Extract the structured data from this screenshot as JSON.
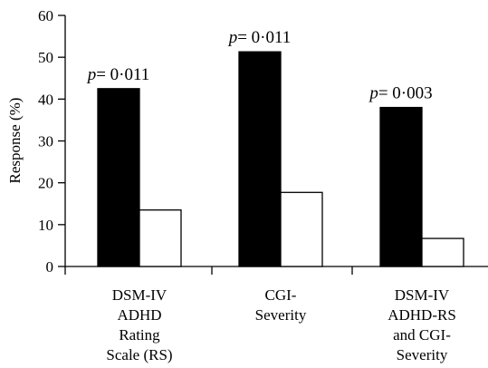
{
  "chart_data": {
    "type": "bar",
    "ylabel": "Response (%)",
    "xlabel": "",
    "ylim": [
      0,
      60
    ],
    "yticks": [
      0,
      10,
      20,
      30,
      40,
      50,
      60
    ],
    "grid": false,
    "legend": "none",
    "categories": [
      [
        "DSM-IV",
        "ADHD",
        "Rating",
        "Scale (RS)"
      ],
      [
        "CGI-",
        "Severity"
      ],
      [
        "DSM-IV",
        "ADHD-RS",
        "and CGI-",
        "Severity"
      ]
    ],
    "series": [
      {
        "values": [
          42.5,
          51.3,
          38.0
        ],
        "color": "#000000"
      },
      {
        "values": [
          13.5,
          17.7,
          6.7
        ],
        "color": "#ffffff"
      }
    ],
    "annotations": [
      {
        "italic": "p",
        "text": "= 0·011"
      },
      {
        "italic": "p",
        "text": "= 0·011"
      },
      {
        "italic": "p",
        "text": "= 0·003"
      }
    ]
  }
}
